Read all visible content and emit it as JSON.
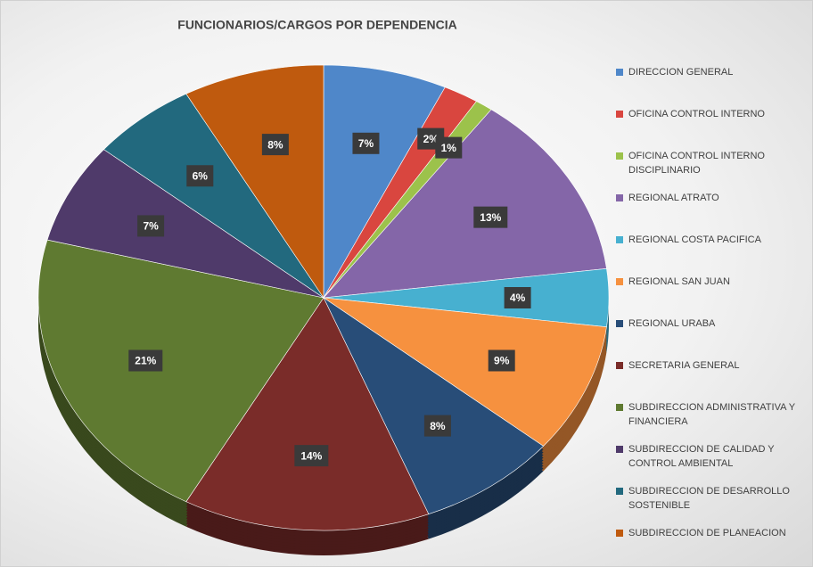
{
  "chart_data": {
    "type": "pie",
    "title": "FUNCIONARIOS/CARGOS POR DEPENDENCIA",
    "categories": [
      "DIRECCION GENERAL",
      "OFICINA CONTROL INTERNO",
      "OFICINA CONTROL INTERNO DISCIPLINARIO",
      "REGIONAL ATRATO",
      "REGIONAL COSTA PACIFICA",
      "REGIONAL SAN JUAN",
      "REGIONAL URABA",
      "SECRETARIA GENERAL",
      "SUBDIRECCION ADMINISTRATIVA Y FINANCIERA",
      "SUBDIRECCION DE CALIDAD Y CONTROL AMBIENTAL",
      "SUBDIRECCION DE DESARROLLO SOSTENIBLE",
      "SUBDIRECCION DE PLANEACION"
    ],
    "values": [
      7,
      2,
      1,
      13,
      4,
      9,
      8,
      14,
      21,
      7,
      6,
      8
    ],
    "value_labels": [
      "7%",
      "2%",
      "1%",
      "13%",
      "4%",
      "9%",
      "8%",
      "14%",
      "21%",
      "7%",
      "6%",
      "8%"
    ],
    "colors": [
      "#4f87c9",
      "#d9463f",
      "#9cc24b",
      "#8466a8",
      "#47b0d0",
      "#f6913f",
      "#284d78",
      "#7a2c29",
      "#5f7a31",
      "#4f3a6a",
      "#22697e",
      "#bf5a0e"
    ],
    "legend": "right"
  }
}
